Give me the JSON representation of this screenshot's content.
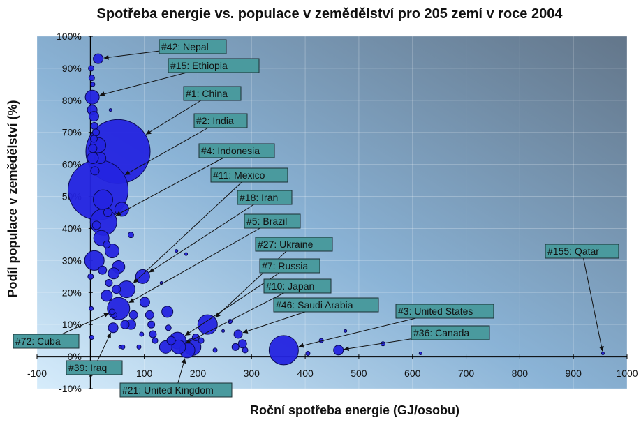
{
  "chart_data": {
    "type": "scatter",
    "title": "Spotřeba energie vs. populace v zemědělství pro 205 zemí v roce 2004",
    "xlabel": "Roční spotřeba energie (GJ/osobu)",
    "ylabel": "Podíl populace v zemědělství (%)",
    "xlim": [
      -100,
      1000
    ],
    "ylim": [
      -10,
      100
    ],
    "x_ticks": [
      -100,
      0,
      100,
      200,
      300,
      400,
      500,
      600,
      700,
      800,
      900,
      1000
    ],
    "y_ticks": [
      -10,
      0,
      10,
      20,
      30,
      40,
      50,
      60,
      70,
      80,
      90,
      100
    ],
    "y_tick_suffix": "%",
    "labeled_points": [
      {
        "label": "#42: Nepal",
        "x": 14,
        "y": 93,
        "r": 7
      },
      {
        "label": "#15: Ethiopia",
        "x": 3,
        "y": 81,
        "r": 10
      },
      {
        "label": "#1: China",
        "x": 51,
        "y": 64,
        "r": 46
      },
      {
        "label": "#2: India",
        "x": 14,
        "y": 52,
        "r": 43
      },
      {
        "label": "#4: Indonesia",
        "x": 24,
        "y": 42,
        "r": 19
      },
      {
        "label": "#11: Mexico",
        "x": 67,
        "y": 21,
        "r": 12
      },
      {
        "label": "#18: Iran",
        "x": 97,
        "y": 25,
        "r": 10
      },
      {
        "label": "#5: Brazil",
        "x": 52,
        "y": 15,
        "r": 16
      },
      {
        "label": "#27: Ukraine",
        "x": 218,
        "y": 10,
        "r": 14
      },
      {
        "label": "#7: Russia",
        "x": 162,
        "y": 5,
        "r": 12
      },
      {
        "label": "#10: Japan",
        "x": 164,
        "y": 3,
        "r": 10
      },
      {
        "label": "#46: Saudi Arabia",
        "x": 275,
        "y": 7,
        "r": 6
      },
      {
        "label": "#3: United States",
        "x": 360,
        "y": 2,
        "r": 21
      },
      {
        "label": "#36: Canada",
        "x": 462,
        "y": 2,
        "r": 7
      },
      {
        "label": "#155: Qatar",
        "x": 955,
        "y": 1,
        "r": 2
      },
      {
        "label": "#72: Cuba",
        "x": 40,
        "y": 14,
        "r": 4
      },
      {
        "label": "#39: Iraq",
        "x": 42,
        "y": 9,
        "r": 7
      },
      {
        "label": "#21: United Kingdom",
        "x": 180,
        "y": 2,
        "r": 11
      }
    ],
    "other_points": [
      {
        "x": 1,
        "y": 90,
        "r": 4
      },
      {
        "x": 2,
        "y": 87,
        "r": 4
      },
      {
        "x": 4,
        "y": 85,
        "r": 3
      },
      {
        "x": 3,
        "y": 77,
        "r": 7
      },
      {
        "x": 6,
        "y": 75,
        "r": 7
      },
      {
        "x": 7,
        "y": 72,
        "r": 5
      },
      {
        "x": 10,
        "y": 70,
        "r": 5
      },
      {
        "x": 6,
        "y": 68,
        "r": 5
      },
      {
        "x": 4,
        "y": 65,
        "r": 6
      },
      {
        "x": 14,
        "y": 66,
        "r": 11
      },
      {
        "x": 18,
        "y": 62,
        "r": 8
      },
      {
        "x": 4,
        "y": 62,
        "r": 8
      },
      {
        "x": 8,
        "y": 58,
        "r": 6
      },
      {
        "x": 23,
        "y": 49,
        "r": 14
      },
      {
        "x": 58,
        "y": 46,
        "r": 10
      },
      {
        "x": 11,
        "y": 41,
        "r": 6
      },
      {
        "x": 32,
        "y": 45,
        "r": 6
      },
      {
        "x": 20,
        "y": 37,
        "r": 11
      },
      {
        "x": 40,
        "y": 33,
        "r": 10
      },
      {
        "x": 7,
        "y": 30,
        "r": 14
      },
      {
        "x": 22,
        "y": 27,
        "r": 6
      },
      {
        "x": 52,
        "y": 28,
        "r": 9
      },
      {
        "x": 43,
        "y": 26,
        "r": 8
      },
      {
        "x": 34,
        "y": 23,
        "r": 5
      },
      {
        "x": 30,
        "y": 19,
        "r": 8
      },
      {
        "x": 48,
        "y": 21,
        "r": 6
      },
      {
        "x": 64,
        "y": 10,
        "r": 6
      },
      {
        "x": 75,
        "y": 10,
        "r": 7
      },
      {
        "x": 80,
        "y": 13,
        "r": 6
      },
      {
        "x": 101,
        "y": 17,
        "r": 7
      },
      {
        "x": 110,
        "y": 13,
        "r": 6
      },
      {
        "x": 113,
        "y": 10,
        "r": 5
      },
      {
        "x": 116,
        "y": 7,
        "r": 5
      },
      {
        "x": 143,
        "y": 14,
        "r": 8
      },
      {
        "x": 145,
        "y": 9,
        "r": 4
      },
      {
        "x": 140,
        "y": 3,
        "r": 9
      },
      {
        "x": 150,
        "y": 5,
        "r": 6
      },
      {
        "x": 120,
        "y": 5,
        "r": 4
      },
      {
        "x": 95,
        "y": 7,
        "r": 3
      },
      {
        "x": 190,
        "y": 3,
        "r": 12
      },
      {
        "x": 196,
        "y": 6,
        "r": 5
      },
      {
        "x": 206,
        "y": 5,
        "r": 4
      },
      {
        "x": 270,
        "y": 3,
        "r": 5
      },
      {
        "x": 283,
        "y": 4,
        "r": 6
      },
      {
        "x": 288,
        "y": 2,
        "r": 4
      },
      {
        "x": 260,
        "y": 11,
        "r": 3
      },
      {
        "x": 247,
        "y": 8,
        "r": 2
      },
      {
        "x": 232,
        "y": 2,
        "r": 3
      },
      {
        "x": 160,
        "y": 33,
        "r": 2
      },
      {
        "x": 178,
        "y": 32,
        "r": 2
      },
      {
        "x": 132,
        "y": 23,
        "r": 2
      },
      {
        "x": 75,
        "y": 38,
        "r": 4
      },
      {
        "x": 37,
        "y": 77,
        "r": 2
      },
      {
        "x": 60,
        "y": 3,
        "r": 3
      },
      {
        "x": 44,
        "y": 13,
        "r": 4
      },
      {
        "x": 55,
        "y": 3,
        "r": 2
      },
      {
        "x": 90,
        "y": 3,
        "r": 3
      },
      {
        "x": 430,
        "y": 5,
        "r": 3
      },
      {
        "x": 405,
        "y": 1,
        "r": 3
      },
      {
        "x": 475,
        "y": 8,
        "r": 2
      },
      {
        "x": 545,
        "y": 4,
        "r": 3
      },
      {
        "x": 615,
        "y": 1,
        "r": 2
      },
      {
        "x": 0,
        "y": 25,
        "r": 4
      },
      {
        "x": 1,
        "y": 15,
        "r": 3
      },
      {
        "x": 2,
        "y": 6,
        "r": 3
      },
      {
        "x": 30,
        "y": 35,
        "r": 5
      }
    ]
  }
}
